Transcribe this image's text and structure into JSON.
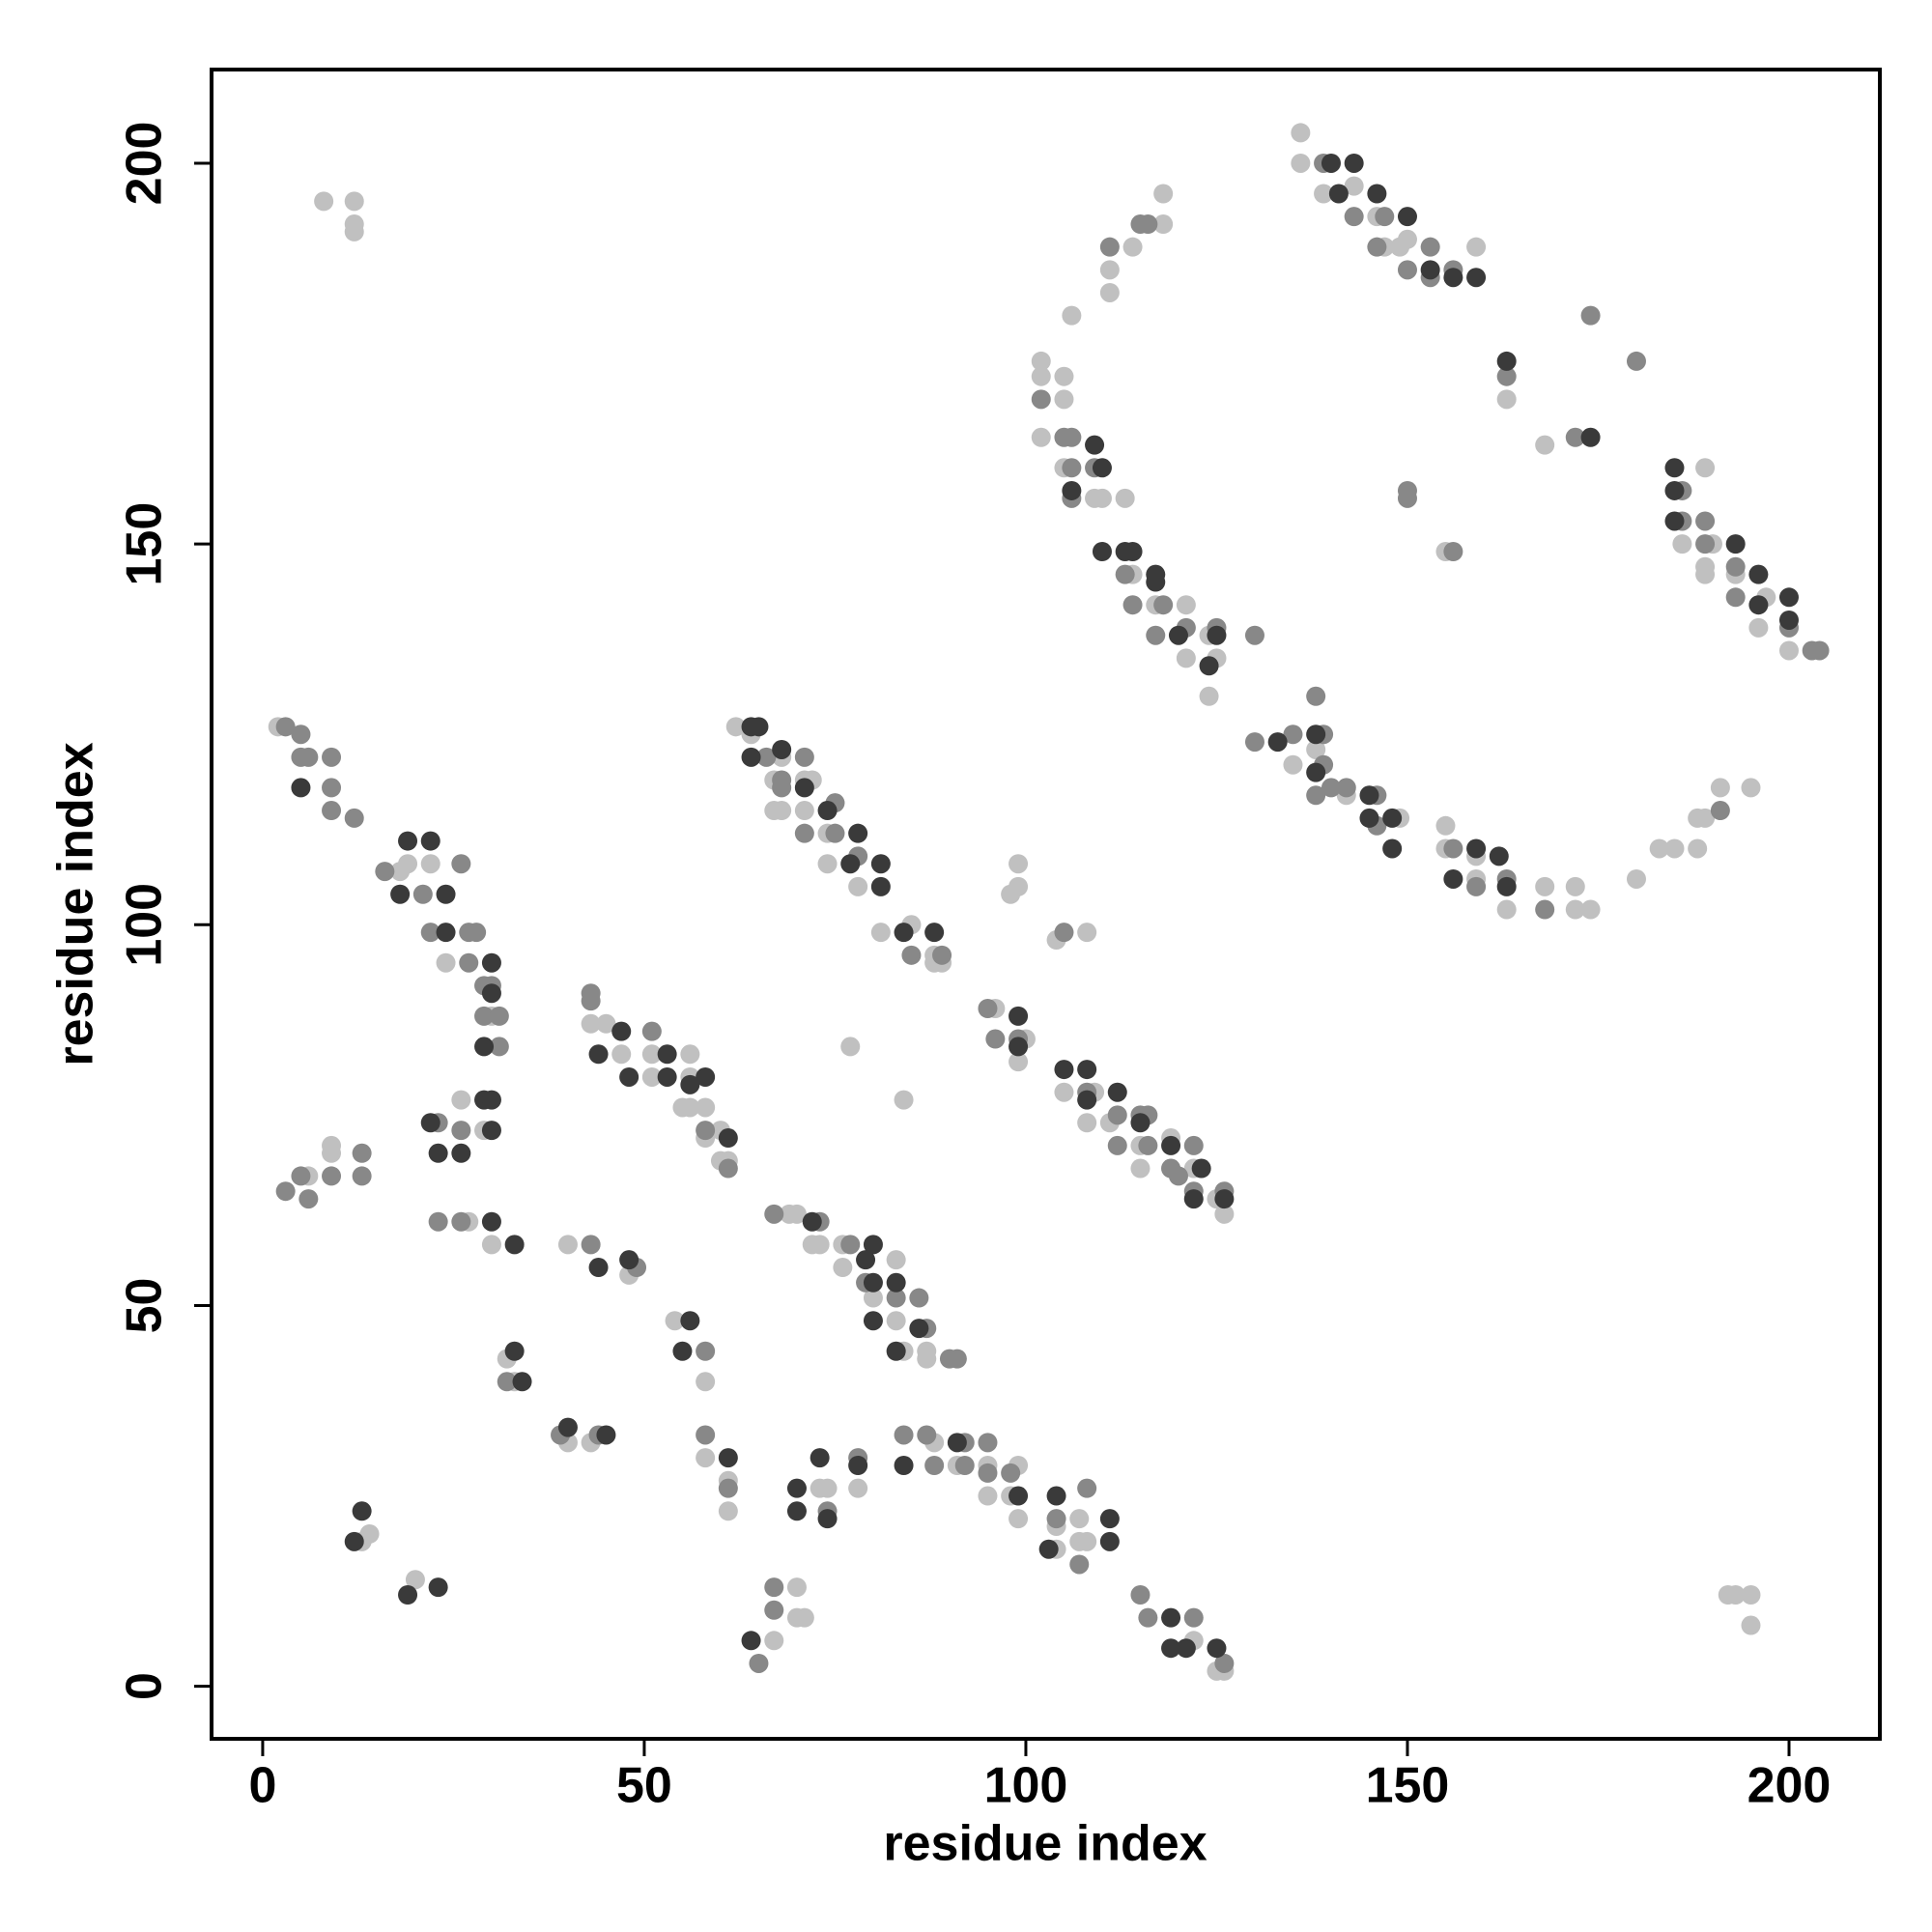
{
  "chart_data": {
    "type": "scatter",
    "x_label": "residue index",
    "y_label": "residue index",
    "xlim": [
      -6.7,
      211.9
    ],
    "ylim": [
      -6.9,
      212.3
    ],
    "xticks": [
      0,
      50,
      100,
      150,
      200
    ],
    "yticks": [
      0,
      50,
      100,
      150,
      200
    ],
    "series": [
      {
        "color": "#c0c0c0",
        "x": [
          8,
          12,
          12,
          12,
          136,
          136,
          139,
          143,
          146,
          147,
          150,
          149,
          159,
          118,
          118,
          114,
          111,
          111,
          106,
          102,
          102,
          105,
          105,
          102,
          105,
          109,
          110,
          113,
          114,
          117,
          121,
          121,
          124,
          125,
          124,
          135,
          138,
          142,
          149,
          155,
          155,
          159,
          159,
          163,
          168,
          172,
          174,
          172,
          180,
          183,
          185,
          188,
          188,
          189,
          191,
          195,
          189,
          186,
          190,
          189,
          189,
          193,
          197,
          196,
          200,
          155,
          163,
          168,
          2,
          18,
          19,
          22,
          24,
          30,
          26,
          29,
          9,
          9,
          6,
          27,
          30,
          32,
          33,
          40,
          43,
          13,
          14,
          20,
          43,
          45,
          47,
          51,
          51,
          56,
          56,
          55,
          56,
          58,
          58,
          60,
          60,
          61,
          48,
          40,
          54,
          58,
          58,
          61,
          61,
          67,
          70,
          70,
          71,
          73,
          74,
          78,
          69,
          70,
          72,
          73,
          76,
          76,
          83,
          80,
          83,
          84,
          87,
          87,
          88,
          91,
          95,
          95,
          99,
          98,
          99,
          104,
          104,
          107,
          107,
          108,
          122,
          125,
          126,
          62,
          64,
          68,
          67,
          71,
          72,
          67,
          68,
          71,
          74,
          74,
          78,
          81,
          85,
          88,
          88,
          89,
          77,
          84,
          96,
          100,
          99,
          105,
          109,
          108,
          111,
          115,
          119,
          115,
          119,
          122,
          126,
          125,
          98,
          99,
          99,
          104,
          108,
          192,
          193,
          195,
          195
        ],
        "values": [
          195,
          195,
          192,
          191,
          204,
          200,
          196,
          197,
          193,
          189,
          190,
          189,
          189,
          196,
          192,
          189,
          186,
          183,
          180,
          174,
          172,
          172,
          169,
          164,
          160,
          156,
          156,
          156,
          146,
          142,
          142,
          135,
          138,
          135,
          130,
          121,
          123,
          117,
          114,
          113,
          110,
          109,
          106,
          102,
          105,
          102,
          102,
          105,
          106,
          110,
          110,
          110,
          114,
          114,
          118,
          118,
          160,
          150,
          150,
          147,
          146,
          146,
          143,
          139,
          136,
          149,
          169,
          163,
          126,
          107,
          108,
          108,
          95,
          88,
          77,
          73,
          71,
          70,
          67,
          61,
          58,
          43,
          40,
          32,
          32,
          19,
          20,
          14,
          87,
          87,
          83,
          83,
          80,
          83,
          80,
          76,
          76,
          76,
          72,
          73,
          69,
          69,
          54,
          58,
          48,
          40,
          30,
          27,
          23,
          6,
          13,
          9,
          9,
          26,
          26,
          26,
          62,
          62,
          58,
          58,
          58,
          55,
          56,
          51,
          48,
          44,
          44,
          43,
          32,
          29,
          29,
          25,
          29,
          25,
          22,
          21,
          18,
          22,
          19,
          19,
          6,
          2,
          2,
          126,
          125,
          122,
          119,
          119,
          119,
          115,
          115,
          115,
          112,
          108,
          105,
          99,
          100,
          96,
          95,
          95,
          84,
          77,
          89,
          85,
          82,
          78,
          78,
          74,
          74,
          71,
          72,
          68,
          68,
          68,
          62,
          64,
          104,
          105,
          108,
          98,
          99,
          12,
          12,
          12,
          8
        ]
      },
      {
        "color": "#888888",
        "x": [
          139,
          143,
          147,
          146,
          153,
          150,
          153,
          156,
          115,
          116,
          111,
          102,
          105,
          106,
          106,
          106,
          109,
          113,
          114,
          118,
          117,
          121,
          125,
          130,
          130,
          135,
          138,
          139,
          139,
          140,
          142,
          138,
          146,
          146,
          156,
          159,
          163,
          168,
          191,
          186,
          186,
          189,
          189,
          193,
          193,
          200,
          203,
          204,
          150,
          150,
          156,
          163,
          172,
          174,
          180,
          3,
          5,
          5,
          6,
          9,
          9,
          9,
          12,
          16,
          21,
          26,
          22,
          27,
          28,
          27,
          29,
          30,
          29,
          31,
          31,
          26,
          23,
          13,
          13,
          5,
          9,
          3,
          6,
          23,
          26,
          32,
          39,
          44,
          43,
          43,
          51,
          58,
          61,
          43,
          49,
          58,
          58,
          61,
          65,
          67,
          67,
          74,
          78,
          67,
          73,
          77,
          79,
          83,
          86,
          87,
          90,
          91,
          84,
          87,
          88,
          92,
          92,
          95,
          95,
          98,
          104,
          108,
          107,
          115,
          116,
          122,
          126,
          66,
          71,
          68,
          68,
          75,
          71,
          75,
          78,
          85,
          89,
          95,
          96,
          99,
          108,
          112,
          115,
          116,
          112,
          116,
          119,
          120,
          122,
          122,
          126,
          105
        ],
        "values": [
          200,
          193,
          193,
          189,
          189,
          186,
          185,
          186,
          192,
          192,
          189,
          169,
          164,
          164,
          160,
          156,
          160,
          146,
          142,
          142,
          138,
          139,
          139,
          138,
          124,
          125,
          130,
          125,
          121,
          118,
          118,
          117,
          117,
          113,
          110,
          105,
          106,
          102,
          115,
          157,
          153,
          153,
          150,
          147,
          143,
          139,
          136,
          136,
          157,
          156,
          149,
          172,
          164,
          180,
          174,
          126,
          125,
          122,
          122,
          122,
          118,
          115,
          114,
          107,
          104,
          108,
          99,
          99,
          99,
          95,
          92,
          92,
          88,
          88,
          84,
          73,
          74,
          70,
          67,
          67,
          67,
          65,
          64,
          61,
          61,
          40,
          33,
          33,
          91,
          90,
          86,
          73,
          68,
          58,
          55,
          44,
          33,
          26,
          3,
          13,
          10,
          23,
          30,
          62,
          61,
          58,
          53,
          51,
          51,
          47,
          43,
          43,
          33,
          33,
          29,
          32,
          29,
          32,
          28,
          28,
          22,
          26,
          16,
          12,
          9,
          9,
          3,
          122,
          122,
          119,
          118,
          116,
          112,
          112,
          109,
          96,
          96,
          89,
          85,
          85,
          78,
          75,
          75,
          75,
          71,
          71,
          68,
          67,
          71,
          65,
          65,
          99
        ]
      },
      {
        "color": "#3a3a3a",
        "x": [
          140,
          143,
          141,
          146,
          150,
          153,
          156,
          159,
          106,
          109,
          110,
          110,
          113,
          114,
          117,
          117,
          120,
          125,
          124,
          133,
          138,
          138,
          145,
          145,
          148,
          148,
          159,
          162,
          156,
          163,
          185,
          185,
          185,
          193,
          196,
          196,
          200,
          200,
          163,
          174,
          5,
          19,
          22,
          18,
          24,
          24,
          30,
          29,
          30,
          29,
          30,
          30,
          22,
          23,
          26,
          30,
          33,
          33,
          34,
          40,
          45,
          13,
          12,
          19,
          23,
          44,
          47,
          48,
          53,
          53,
          58,
          56,
          61,
          44,
          48,
          56,
          55,
          61,
          64,
          70,
          70,
          73,
          74,
          78,
          72,
          79,
          80,
          80,
          83,
          80,
          86,
          83,
          84,
          91,
          99,
          103,
          104,
          111,
          111,
          119,
          119,
          121,
          125,
          64,
          65,
          64,
          68,
          71,
          74,
          78,
          77,
          81,
          81,
          84,
          88,
          99,
          99,
          105,
          108,
          108,
          112,
          115,
          119,
          123,
          122,
          126
        ],
        "values": [
          200,
          200,
          196,
          196,
          193,
          186,
          185,
          185,
          157,
          163,
          160,
          149,
          149,
          149,
          146,
          145,
          138,
          138,
          134,
          124,
          125,
          120,
          117,
          114,
          114,
          110,
          110,
          109,
          106,
          105,
          160,
          157,
          153,
          150,
          146,
          142,
          143,
          140,
          174,
          164,
          118,
          111,
          111,
          104,
          104,
          99,
          95,
          84,
          91,
          77,
          77,
          73,
          74,
          70,
          70,
          61,
          58,
          44,
          40,
          34,
          33,
          23,
          19,
          12,
          13,
          83,
          86,
          80,
          83,
          80,
          80,
          79,
          72,
          55,
          56,
          48,
          44,
          30,
          6,
          26,
          23,
          30,
          22,
          29,
          61,
          56,
          58,
          53,
          53,
          48,
          47,
          44,
          29,
          32,
          25,
          18,
          25,
          22,
          19,
          9,
          5,
          5,
          5,
          126,
          126,
          122,
          123,
          118,
          115,
          112,
          108,
          108,
          105,
          99,
          99,
          88,
          84,
          81,
          81,
          77,
          78,
          74,
          71,
          68,
          64,
          64
        ]
      }
    ]
  }
}
